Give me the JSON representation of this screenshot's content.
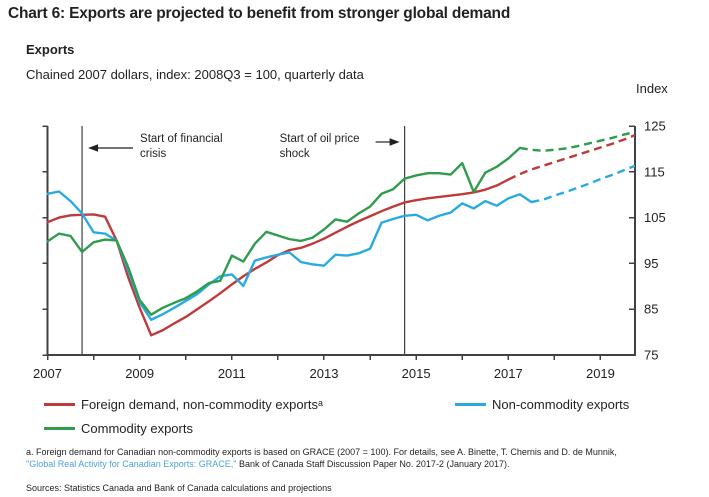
{
  "page": {
    "title": "Chart 6: Exports are projected to benefit from stronger global demand",
    "panel_title": "Exports",
    "units_line": "Chained 2007 dollars, index: 2008Q3 = 100, quarterly data",
    "footnote": {
      "line1": "a. Foreign demand for Canadian non-commodity exports is based on GRACE (2007 = 100). For details, see A. Binette, T. Chernis and D. de Munnik,",
      "link": "\"Global Real Activity for Canadian Exports: GRACE,\"",
      "rest": " Bank of Canada Staff Discussion Paper No. 2017-2 (January 2017)."
    },
    "sources": "Sources: Statistics Canada and Bank of Canada calculations and projections"
  },
  "colors": {
    "axis": "#414042",
    "event_line": "#414042",
    "text": "#231f20",
    "link": "#4da3d2"
  },
  "chart_data": {
    "type": "line",
    "title": "Exports",
    "subtitle": "Chained 2007 dollars, index: 2008Q3 = 100, quarterly data",
    "ylabel": "Index",
    "xlabel": "",
    "ylim": [
      75,
      125
    ],
    "yticks": [
      75,
      85,
      95,
      105,
      115,
      125
    ],
    "x_range_years": [
      2007,
      2019.75
    ],
    "tick_years": [
      2007,
      2008,
      2009,
      2010,
      2011,
      2012,
      2013,
      2014,
      2015,
      2016,
      2017,
      2018,
      2019
    ],
    "tick_years_labeled": [
      2007,
      2009,
      2011,
      2013,
      2015,
      2017,
      2019
    ],
    "grid": false,
    "legend_position": "bottom",
    "dashed_segments_meaning": "projection",
    "quarters": [
      "2007Q1",
      "2007Q2",
      "2007Q3",
      "2007Q4",
      "2008Q1",
      "2008Q2",
      "2008Q3",
      "2008Q4",
      "2009Q1",
      "2009Q2",
      "2009Q3",
      "2009Q4",
      "2010Q1",
      "2010Q2",
      "2010Q3",
      "2010Q4",
      "2011Q1",
      "2011Q2",
      "2011Q3",
      "2011Q4",
      "2012Q1",
      "2012Q2",
      "2012Q3",
      "2012Q4",
      "2013Q1",
      "2013Q2",
      "2013Q3",
      "2013Q4",
      "2014Q1",
      "2014Q2",
      "2014Q3",
      "2014Q4",
      "2015Q1",
      "2015Q2",
      "2015Q3",
      "2015Q4",
      "2016Q1",
      "2016Q2",
      "2016Q3",
      "2016Q4",
      "2017Q1",
      "2017Q2",
      "2017Q3",
      "2017Q4",
      "2018Q1",
      "2018Q2",
      "2018Q3",
      "2018Q4",
      "2019Q1",
      "2019Q2",
      "2019Q3",
      "2019Q4"
    ],
    "series": [
      {
        "name": "Foreign demand, non-commodity exports",
        "legend_label": "Foreign demand, non-commodity exportsᵃ",
        "color": "#bf3a3a",
        "dash_after_index": 40,
        "values": [
          104.0,
          105.0,
          105.5,
          105.6,
          105.7,
          105.2,
          100.0,
          92.0,
          85.3,
          79.3,
          80.4,
          81.9,
          83.3,
          85.0,
          86.7,
          88.5,
          90.4,
          92.2,
          93.8,
          95.2,
          96.8,
          97.9,
          98.4,
          99.3,
          100.4,
          101.7,
          103.0,
          104.2,
          105.3,
          106.4,
          107.4,
          108.3,
          108.8,
          109.2,
          109.5,
          109.8,
          110.1,
          110.5,
          111.1,
          112.0,
          113.3,
          114.5,
          115.5,
          116.3,
          117.1,
          117.9,
          118.7,
          119.5,
          120.3,
          121.1,
          122.0,
          123.0
        ]
      },
      {
        "name": "Non-commodity exports",
        "legend_label": "Non-commodity exports",
        "color": "#29abe2",
        "dash_after_index": 42,
        "values": [
          110.2,
          110.7,
          108.6,
          105.9,
          101.8,
          101.5,
          100.0,
          93.5,
          86.5,
          82.7,
          83.9,
          85.3,
          86.8,
          88.3,
          90.4,
          92.2,
          92.6,
          90.1,
          95.6,
          96.3,
          96.9,
          97.4,
          95.3,
          94.8,
          94.5,
          96.9,
          96.7,
          97.2,
          98.2,
          103.9,
          104.7,
          105.4,
          105.6,
          104.4,
          105.4,
          106.1,
          108.1,
          107.0,
          108.6,
          107.6,
          109.2,
          110.1,
          108.4,
          108.9,
          109.8,
          110.6,
          111.5,
          112.4,
          113.4,
          114.3,
          115.3,
          116.3
        ]
      },
      {
        "name": "Commodity exports",
        "legend_label": "Commodity exports",
        "color": "#2f9c4e",
        "dash_after_index": 41,
        "values": [
          99.8,
          101.5,
          101.0,
          97.5,
          99.6,
          100.2,
          100.0,
          94.2,
          87.0,
          83.8,
          85.3,
          86.4,
          87.4,
          88.9,
          90.7,
          91.2,
          96.7,
          95.4,
          99.3,
          101.9,
          101.1,
          100.3,
          99.9,
          100.6,
          102.4,
          104.6,
          104.1,
          105.9,
          107.4,
          110.2,
          111.2,
          113.5,
          114.2,
          114.7,
          114.7,
          114.4,
          116.9,
          110.6,
          114.8,
          116.1,
          117.9,
          120.2,
          119.8,
          119.6,
          119.8,
          120.1,
          120.6,
          121.2,
          121.8,
          122.4,
          123.1,
          123.7
        ]
      }
    ],
    "events": [
      {
        "label_lines": [
          "Start of financial",
          "crisis"
        ],
        "year": 2007.75,
        "arrow_direction": "left"
      },
      {
        "label_lines": [
          "Start of oil price",
          "shock"
        ],
        "year": 2014.75,
        "arrow_direction": "right"
      }
    ]
  }
}
